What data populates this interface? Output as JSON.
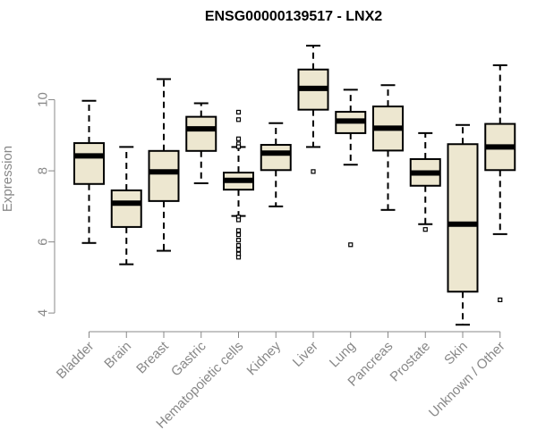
{
  "chart_data": {
    "type": "boxplot",
    "title": "ENSG00000139517 - LNX2",
    "xlabel": "",
    "ylabel": "Expression",
    "ylim": [
      3.5,
      11.9
    ],
    "yticks": [
      4,
      6,
      8,
      10
    ],
    "grid": false,
    "box_fill": "#ede7d0",
    "categories": [
      "Bladder",
      "Brain",
      "Breast",
      "Gastric",
      "Hematopoietic cells",
      "Kidney",
      "Liver",
      "Lung",
      "Pancreas",
      "Prostate",
      "Skin",
      "Unknown / Other"
    ],
    "boxes": [
      {
        "whisker_low": 5.97,
        "q1": 7.63,
        "median": 8.42,
        "q3": 8.78,
        "whisker_high": 9.97,
        "outliers": []
      },
      {
        "whisker_low": 5.37,
        "q1": 6.42,
        "median": 7.09,
        "q3": 7.45,
        "whisker_high": 8.67,
        "outliers": []
      },
      {
        "whisker_low": 5.75,
        "q1": 7.15,
        "median": 7.97,
        "q3": 8.56,
        "whisker_high": 10.58,
        "outliers": []
      },
      {
        "whisker_low": 7.65,
        "q1": 8.56,
        "median": 9.18,
        "q3": 9.52,
        "whisker_high": 9.9,
        "outliers": []
      },
      {
        "whisker_low": 6.73,
        "q1": 7.47,
        "median": 7.73,
        "q3": 7.95,
        "whisker_high": 8.67,
        "outliers": [
          9.65,
          9.44,
          8.9,
          8.76,
          8.68,
          6.7,
          6.62,
          6.32,
          6.2,
          6.05,
          5.9,
          5.78,
          5.66,
          5.57
        ]
      },
      {
        "whisker_low": 7.0,
        "q1": 8.02,
        "median": 8.5,
        "q3": 8.73,
        "whisker_high": 9.34,
        "outliers": []
      },
      {
        "whisker_low": 8.67,
        "q1": 9.72,
        "median": 10.32,
        "q3": 10.85,
        "whisker_high": 11.52,
        "outliers": [
          7.98
        ]
      },
      {
        "whisker_low": 8.17,
        "q1": 9.06,
        "median": 9.4,
        "q3": 9.66,
        "whisker_high": 10.28,
        "outliers": [
          5.92
        ]
      },
      {
        "whisker_low": 6.9,
        "q1": 8.57,
        "median": 9.2,
        "q3": 9.81,
        "whisker_high": 10.41,
        "outliers": []
      },
      {
        "whisker_low": 6.5,
        "q1": 7.58,
        "median": 7.94,
        "q3": 8.33,
        "whisker_high": 9.06,
        "outliers": [
          6.35
        ]
      },
      {
        "whisker_low": 3.67,
        "q1": 4.6,
        "median": 6.5,
        "q3": 8.75,
        "whisker_high": 9.29,
        "outliers": []
      },
      {
        "whisker_low": 6.22,
        "q1": 8.02,
        "median": 8.67,
        "q3": 9.32,
        "whisker_high": 10.97,
        "outliers": [
          4.37
        ]
      }
    ]
  }
}
